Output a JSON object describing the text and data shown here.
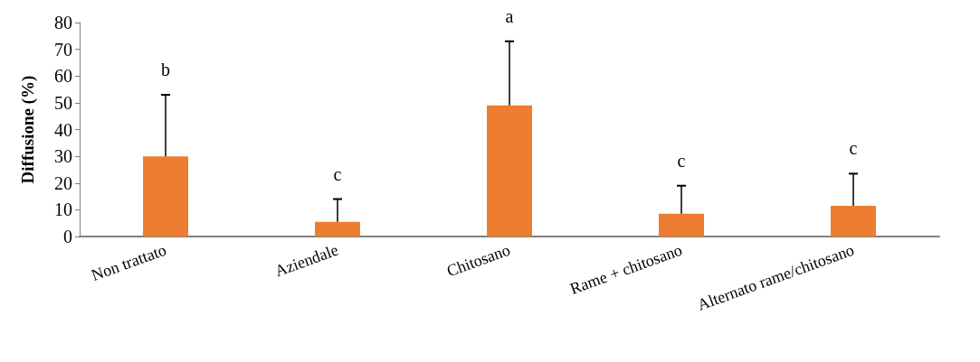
{
  "chart_data": {
    "type": "bar",
    "ylabel": "Diffusione (%)",
    "categories": [
      "Non trattato",
      "Aziendale",
      "Chitosano",
      "Rame + chitosano",
      "Alternato rame/chitosano"
    ],
    "values": [
      30,
      5.5,
      49,
      8.5,
      11.5
    ],
    "errors": [
      [
        30,
        53
      ],
      [
        5.5,
        14
      ],
      [
        49,
        73
      ],
      [
        8.5,
        19
      ],
      [
        11.5,
        23.5
      ]
    ],
    "color": "#ed7d31",
    "ylim": [
      0,
      80
    ],
    "yticks": [
      0,
      10,
      20,
      30,
      40,
      50,
      60,
      70,
      80
    ],
    "grid": false,
    "annotations": [
      {
        "text": "b",
        "x": "Non trattato",
        "y": 53
      },
      {
        "text": "c",
        "x": "Aziendale",
        "y": 14
      },
      {
        "text": "a",
        "x": "Chitosano",
        "y": 73
      },
      {
        "text": "c",
        "x": "Rame + chitosano",
        "y": 19
      },
      {
        "text": "c",
        "x": "Alternato rame/chitosano",
        "y": 23.5
      }
    ]
  }
}
